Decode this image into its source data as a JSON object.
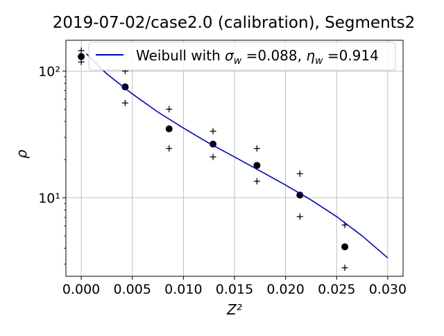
{
  "chart_data": {
    "type": "scatter",
    "title": "2019-07-02/case2.0 (calibration), Segments2",
    "xlabel": "Z²",
    "ylabel": "ρ",
    "yscale": "log",
    "grid": true,
    "legend_position": "top-right",
    "xlim": [
      -0.0015,
      0.0315
    ],
    "ylim": [
      2.4,
      175
    ],
    "x_ticks": [
      0.0,
      0.005,
      0.01,
      0.015,
      0.02,
      0.025,
      0.03
    ],
    "x_tick_labels": [
      "0.000",
      "0.005",
      "0.010",
      "0.015",
      "0.020",
      "0.025",
      "0.030"
    ],
    "y_ticks": [
      10,
      100
    ],
    "y_tick_labels": [
      "10¹",
      "10²"
    ],
    "series": [
      {
        "kind": "points",
        "marker": "circle",
        "color": "#000000",
        "x": [
          0.0,
          0.0043,
          0.0086,
          0.0129,
          0.0172,
          0.0214,
          0.0258
        ],
        "y": [
          130,
          75,
          35,
          26.5,
          18,
          10.5,
          4.1
        ]
      },
      {
        "kind": "points",
        "marker": "plus",
        "color": "#000000",
        "x": [
          0.0,
          0.0,
          0.0043,
          0.0043,
          0.0086,
          0.0086,
          0.0129,
          0.0129,
          0.0172,
          0.0172,
          0.0214,
          0.0214,
          0.0258,
          0.0258
        ],
        "y": [
          145,
          118,
          100,
          56,
          50,
          24.5,
          33.5,
          21,
          24.5,
          13.5,
          15.5,
          7.1,
          6.1,
          2.8
        ]
      },
      {
        "kind": "line",
        "name": "Weibull with σw =0.088, ηw =0.914",
        "color": "#0000cc",
        "x": [
          0.0005,
          0.0025,
          0.005,
          0.0075,
          0.01,
          0.0125,
          0.015,
          0.0175,
          0.02,
          0.0225,
          0.025,
          0.0275,
          0.03
        ],
        "y": [
          137,
          95,
          66,
          47.5,
          35.5,
          27,
          21,
          16.3,
          12.6,
          9.6,
          7.1,
          5.0,
          3.35
        ]
      }
    ],
    "legend": {
      "line_label_parts": {
        "prefix": "Weibull with ",
        "sigma_symbol": "σ",
        "sigma_sub": "w",
        "sigma_value": " =0.088, ",
        "eta_symbol": "η",
        "eta_sub": "w",
        "eta_value": " =0.914"
      }
    }
  }
}
